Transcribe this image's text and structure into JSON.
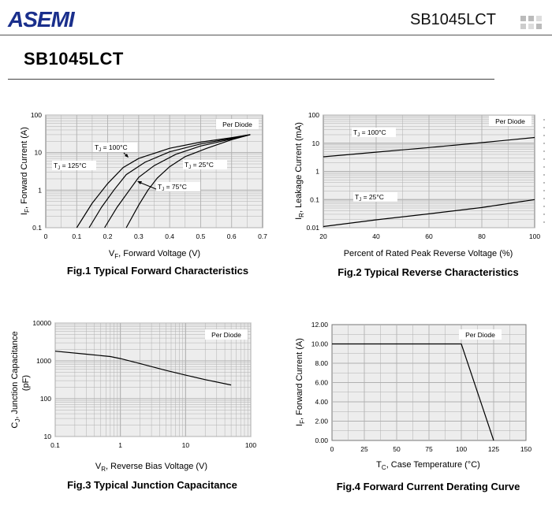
{
  "header": {
    "logo_text": "ASEMI",
    "part_number": "SB1045LCT"
  },
  "title": "SB1045LCT",
  "colors": {
    "logo_blue": "#1a2f8c",
    "grid": "#b0b0b0",
    "plot_bg": "#ededed"
  },
  "chart_data": [
    {
      "type": "line",
      "caption": "Fig.1 Typical Forward Characteristics",
      "xlabel_main": "V",
      "xlabel_sub": "F",
      "xlabel_rest": ", Forward Voltage (V)",
      "ylabel_main": "I",
      "ylabel_sub": "F",
      "ylabel_rest": ", Forward Current (A)",
      "xlim": [
        0,
        0.7
      ],
      "ylim": [
        0.1,
        100
      ],
      "ylog": true,
      "xticks": [
        "0",
        "0.1",
        "0.2",
        "0.3",
        "0.4",
        "0.5",
        "0.6",
        "0.7"
      ],
      "yticks": [
        "0.1",
        "1",
        "10",
        "100"
      ],
      "box_label": "Per Diode",
      "series": [
        {
          "label": "T  = 125°C",
          "x": [
            0.1,
            0.15,
            0.2,
            0.25,
            0.3,
            0.4,
            0.5,
            0.6,
            0.66
          ],
          "y": [
            0.1,
            0.45,
            1.5,
            4.0,
            7.0,
            13,
            19,
            25,
            30
          ]
        },
        {
          "label": "T  = 100°C",
          "x": [
            0.14,
            0.18,
            0.22,
            0.26,
            0.32,
            0.4,
            0.5,
            0.6,
            0.66
          ],
          "y": [
            0.1,
            0.35,
            1.0,
            2.6,
            5.5,
            10.5,
            17,
            24,
            30
          ]
        },
        {
          "label": "T  = 75°C",
          "x": [
            0.19,
            0.23,
            0.27,
            0.3,
            0.35,
            0.42,
            0.5,
            0.6,
            0.66
          ],
          "y": [
            0.1,
            0.35,
            1.0,
            2.2,
            4.5,
            9.0,
            15,
            23,
            30
          ]
        },
        {
          "label": "T  = 25°C",
          "x": [
            0.26,
            0.3,
            0.33,
            0.36,
            0.4,
            0.45,
            0.52,
            0.6,
            0.66
          ],
          "y": [
            0.1,
            0.4,
            1.0,
            2.1,
            4.2,
            7.8,
            13,
            22,
            30
          ]
        }
      ]
    },
    {
      "type": "line",
      "caption": "Fig.2 Typical Reverse Characteristics",
      "xlabel": "Percent of Rated Peak Reverse Voltage (%)",
      "ylabel_main": "I",
      "ylabel_sub": "R",
      "ylabel_rest": ", Leakage Current (mA)",
      "xlim": [
        20,
        100
      ],
      "ylim": [
        0.01,
        100
      ],
      "ylog": true,
      "xticks": [
        "20",
        "40",
        "60",
        "80",
        "100"
      ],
      "yticks": [
        "0.01",
        "0.1",
        "1",
        "10",
        "100"
      ],
      "box_label": "Per Diode",
      "series": [
        {
          "label": "T  = 100°C",
          "x": [
            20,
            40,
            60,
            80,
            100
          ],
          "y": [
            3.3,
            4.8,
            7.0,
            10.5,
            16
          ]
        },
        {
          "label": "T  = 25°C",
          "x": [
            20,
            40,
            60,
            80,
            100
          ],
          "y": [
            0.011,
            0.019,
            0.031,
            0.052,
            0.1
          ]
        }
      ]
    },
    {
      "type": "line",
      "caption": "Fig.3 Typical Junction Capacitance",
      "xlabel_main": "V",
      "xlabel_sub": "R",
      "xlabel_rest": ", Reverse Bias Voltage (V)",
      "ylabel_main": "C",
      "ylabel_sub": "J",
      "ylabel_rest": ", Junction Capacitance",
      "ylabel_line2": "(pF)",
      "xlim": [
        0.1,
        100
      ],
      "xlog": true,
      "ylim": [
        10,
        10000
      ],
      "ylog": true,
      "xticks": [
        "0.1",
        "1",
        "10",
        "100"
      ],
      "yticks": [
        "10",
        "100",
        "1000",
        "10000"
      ],
      "box_label": "Per Diode",
      "series": [
        {
          "label": "",
          "x": [
            0.1,
            0.3,
            0.7,
            1,
            2,
            5,
            10,
            20,
            50
          ],
          "y": [
            1800,
            1500,
            1300,
            1150,
            850,
            560,
            420,
            320,
            230
          ]
        }
      ]
    },
    {
      "type": "line",
      "caption": "Fig.4 Forward Current Derating Curve",
      "xlabel_main": "T",
      "xlabel_sub": "C",
      "xlabel_rest": ", Case Temperature  (°C)",
      "ylabel_main": "I",
      "ylabel_sub": "F",
      "ylabel_rest": ", Forward Current (A)",
      "xlim": [
        0,
        150
      ],
      "ylim": [
        0,
        12
      ],
      "xticks": [
        "0",
        "25",
        "50",
        "75",
        "100",
        "125",
        "150"
      ],
      "yticks": [
        "0.00",
        "2.00",
        "4.00",
        "6.00",
        "8.00",
        "10.00",
        "12.00"
      ],
      "box_label": "Per Diode",
      "series": [
        {
          "label": "",
          "x": [
            0,
            100,
            125
          ],
          "y": [
            10,
            10,
            0
          ]
        }
      ]
    }
  ]
}
